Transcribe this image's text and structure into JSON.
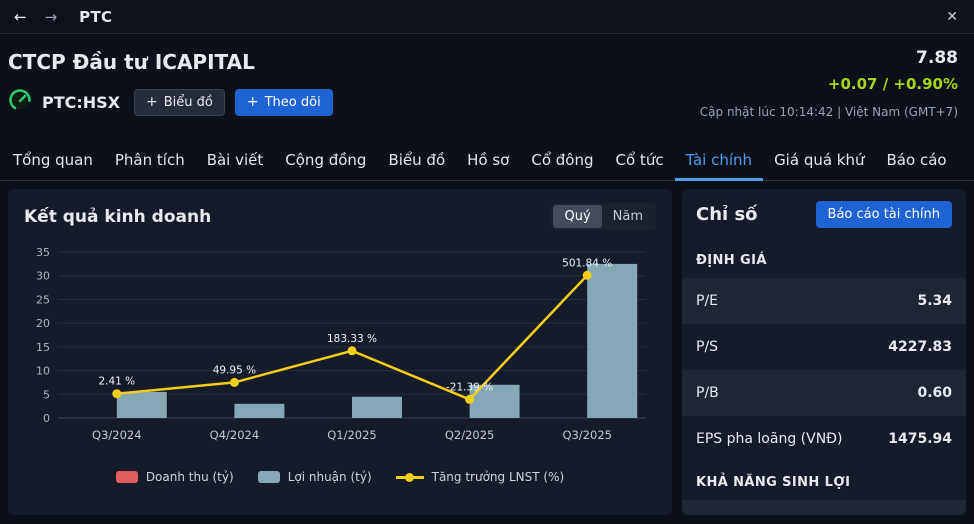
{
  "titlebar": {
    "back_icon": "←",
    "forward_icon": "→",
    "title": "PTC",
    "close_icon": "✕"
  },
  "header": {
    "company_name": "CTCP Đầu tư ICAPITAL",
    "ticker": "PTC:HSX",
    "plus_icon": "+",
    "chart_button": "Biểu đồ",
    "follow_button": "Theo dõi",
    "price": "7.88",
    "change": "+0.07 / +0.90%",
    "updated": "Cập nhật lúc  10:14:42 | Việt Nam (GMT+7)"
  },
  "tabs": [
    {
      "label": "Tổng quan",
      "active": false
    },
    {
      "label": "Phân tích",
      "active": false
    },
    {
      "label": "Bài viết",
      "active": false
    },
    {
      "label": "Cộng đồng",
      "active": false
    },
    {
      "label": "Biểu đồ",
      "active": false
    },
    {
      "label": "Hồ sơ",
      "active": false
    },
    {
      "label": "Cổ đông",
      "active": false
    },
    {
      "label": "Cổ tức",
      "active": false
    },
    {
      "label": "Tài chính",
      "active": true
    },
    {
      "label": "Giá quá khứ",
      "active": false
    },
    {
      "label": "Báo cáo",
      "active": false
    }
  ],
  "results_card": {
    "title": "Kết quả kinh doanh",
    "toggle": {
      "options": [
        "Quý",
        "Năm"
      ],
      "selected": "Quý"
    }
  },
  "chart_data": {
    "type": "bar",
    "title": "Kết quả kinh doanh",
    "categories": [
      "Q3/2024",
      "Q4/2024",
      "Q1/2025",
      "Q2/2025",
      "Q3/2025"
    ],
    "series": [
      {
        "name": "Doanh thu (tỷ)",
        "type": "bar",
        "color": "#e25d5d",
        "values": [
          0,
          0,
          0,
          0,
          0
        ]
      },
      {
        "name": "Lợi nhuận (tỷ)",
        "type": "bar",
        "color": "#84a8b6",
        "values": [
          5.5,
          3,
          4.5,
          7,
          32.5
        ]
      },
      {
        "name": "Tăng trưởng LNST (%)",
        "type": "line",
        "color": "#f2cf1d",
        "values": [
          2.41,
          49.95,
          183.33,
          -21.39,
          501.84
        ],
        "labels": [
          "2.41 %",
          "49.95 %",
          "183.33 %",
          "-21.39 %",
          "501.84 %"
        ]
      }
    ],
    "xlabel": "",
    "ylabel": "",
    "ylim": [
      0,
      35
    ],
    "yticks": [
      0,
      5,
      10,
      15,
      20,
      25,
      30,
      35
    ],
    "line_axis_range": [
      -100,
      600
    ],
    "grid": true,
    "legend_position": "bottom"
  },
  "indicators_panel": {
    "title": "Chỉ số",
    "report_button": "Báo cáo tài chính",
    "sections": [
      {
        "header": "ĐỊNH GIÁ",
        "rows": [
          {
            "label": "P/E",
            "value": "5.34"
          },
          {
            "label": "P/S",
            "value": "4227.83"
          },
          {
            "label": "P/B",
            "value": "0.60"
          },
          {
            "label": "EPS pha loãng (VNĐ)",
            "value": "1475.94"
          }
        ]
      },
      {
        "header": "KHẢ NĂNG SINH LỢI",
        "rows": []
      }
    ]
  },
  "colors": {
    "accent_blue": "#4f9cf5",
    "button_blue": "#1e63d2",
    "change_green": "#a6d417",
    "bar_teal": "#84a8b6",
    "line_yellow": "#f2cf1d",
    "revenue_red": "#e25d5d",
    "card_bg": "#151b29",
    "stripe_bg": "#1e2634"
  }
}
